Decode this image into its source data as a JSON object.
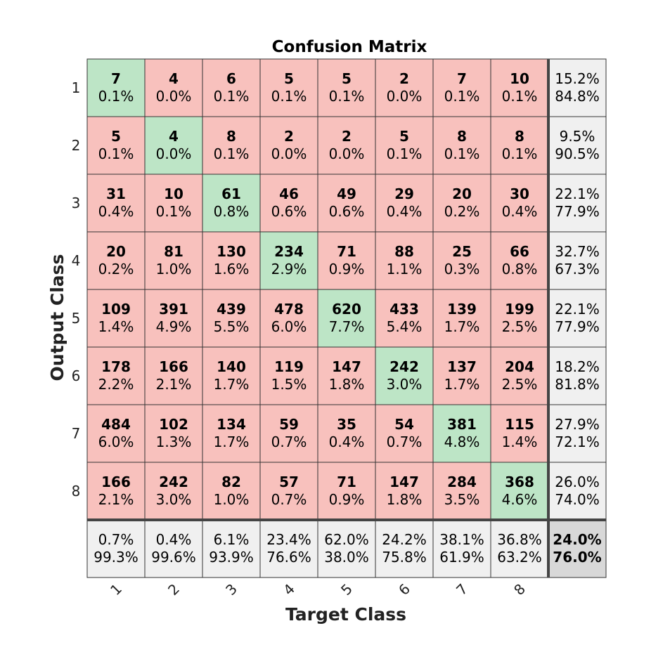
{
  "chart_data": {
    "type": "heatmap",
    "title": "Confusion Matrix",
    "xlabel": "Target Class",
    "ylabel": "Output Class",
    "x_ticks": [
      "1",
      "2",
      "3",
      "4",
      "5",
      "6",
      "7",
      "8"
    ],
    "y_ticks": [
      "1",
      "2",
      "3",
      "4",
      "5",
      "6",
      "7",
      "8"
    ],
    "counts": [
      [
        7,
        4,
        6,
        5,
        5,
        2,
        7,
        10
      ],
      [
        5,
        4,
        8,
        2,
        2,
        5,
        8,
        8
      ],
      [
        31,
        10,
        61,
        46,
        49,
        29,
        20,
        30
      ],
      [
        20,
        81,
        130,
        234,
        71,
        88,
        25,
        66
      ],
      [
        109,
        391,
        439,
        478,
        620,
        433,
        139,
        199
      ],
      [
        178,
        166,
        140,
        119,
        147,
        242,
        137,
        204
      ],
      [
        484,
        102,
        134,
        59,
        35,
        54,
        381,
        115
      ],
      [
        166,
        242,
        82,
        57,
        71,
        147,
        284,
        368
      ]
    ],
    "percents": [
      [
        "0.1%",
        "0.0%",
        "0.1%",
        "0.1%",
        "0.1%",
        "0.0%",
        "0.1%",
        "0.1%"
      ],
      [
        "0.1%",
        "0.0%",
        "0.1%",
        "0.0%",
        "0.0%",
        "0.1%",
        "0.1%",
        "0.1%"
      ],
      [
        "0.4%",
        "0.1%",
        "0.8%",
        "0.6%",
        "0.6%",
        "0.4%",
        "0.2%",
        "0.4%"
      ],
      [
        "0.2%",
        "1.0%",
        "1.6%",
        "2.9%",
        "0.9%",
        "1.1%",
        "0.3%",
        "0.8%"
      ],
      [
        "1.4%",
        "4.9%",
        "5.5%",
        "6.0%",
        "7.7%",
        "5.4%",
        "1.7%",
        "2.5%"
      ],
      [
        "2.2%",
        "2.1%",
        "1.7%",
        "1.5%",
        "1.8%",
        "3.0%",
        "1.7%",
        "2.5%"
      ],
      [
        "6.0%",
        "1.3%",
        "1.7%",
        "0.7%",
        "0.4%",
        "0.7%",
        "4.8%",
        "1.4%"
      ],
      [
        "2.1%",
        "3.0%",
        "1.0%",
        "0.7%",
        "0.9%",
        "1.8%",
        "3.5%",
        "4.6%"
      ]
    ],
    "row_summary": [
      [
        "15.2%",
        "84.8%"
      ],
      [
        "9.5%",
        "90.5%"
      ],
      [
        "22.1%",
        "77.9%"
      ],
      [
        "32.7%",
        "67.3%"
      ],
      [
        "22.1%",
        "77.9%"
      ],
      [
        "18.2%",
        "81.8%"
      ],
      [
        "27.9%",
        "72.1%"
      ],
      [
        "26.0%",
        "74.0%"
      ]
    ],
    "col_summary": [
      [
        "0.7%",
        "99.3%"
      ],
      [
        "0.4%",
        "99.6%"
      ],
      [
        "6.1%",
        "93.9%"
      ],
      [
        "23.4%",
        "76.6%"
      ],
      [
        "62.0%",
        "38.0%"
      ],
      [
        "24.2%",
        "75.8%"
      ],
      [
        "38.1%",
        "61.9%"
      ],
      [
        "36.8%",
        "63.2%"
      ]
    ],
    "overall": [
      "24.0%",
      "76.0%"
    ]
  },
  "colors": {
    "diag": "#bde5c6",
    "offdiag": "#f8c1bd",
    "summary": "#f0f0f0",
    "overall": "#d8d8d8",
    "green_text": "#22a033",
    "red_text": "#d23c32"
  }
}
